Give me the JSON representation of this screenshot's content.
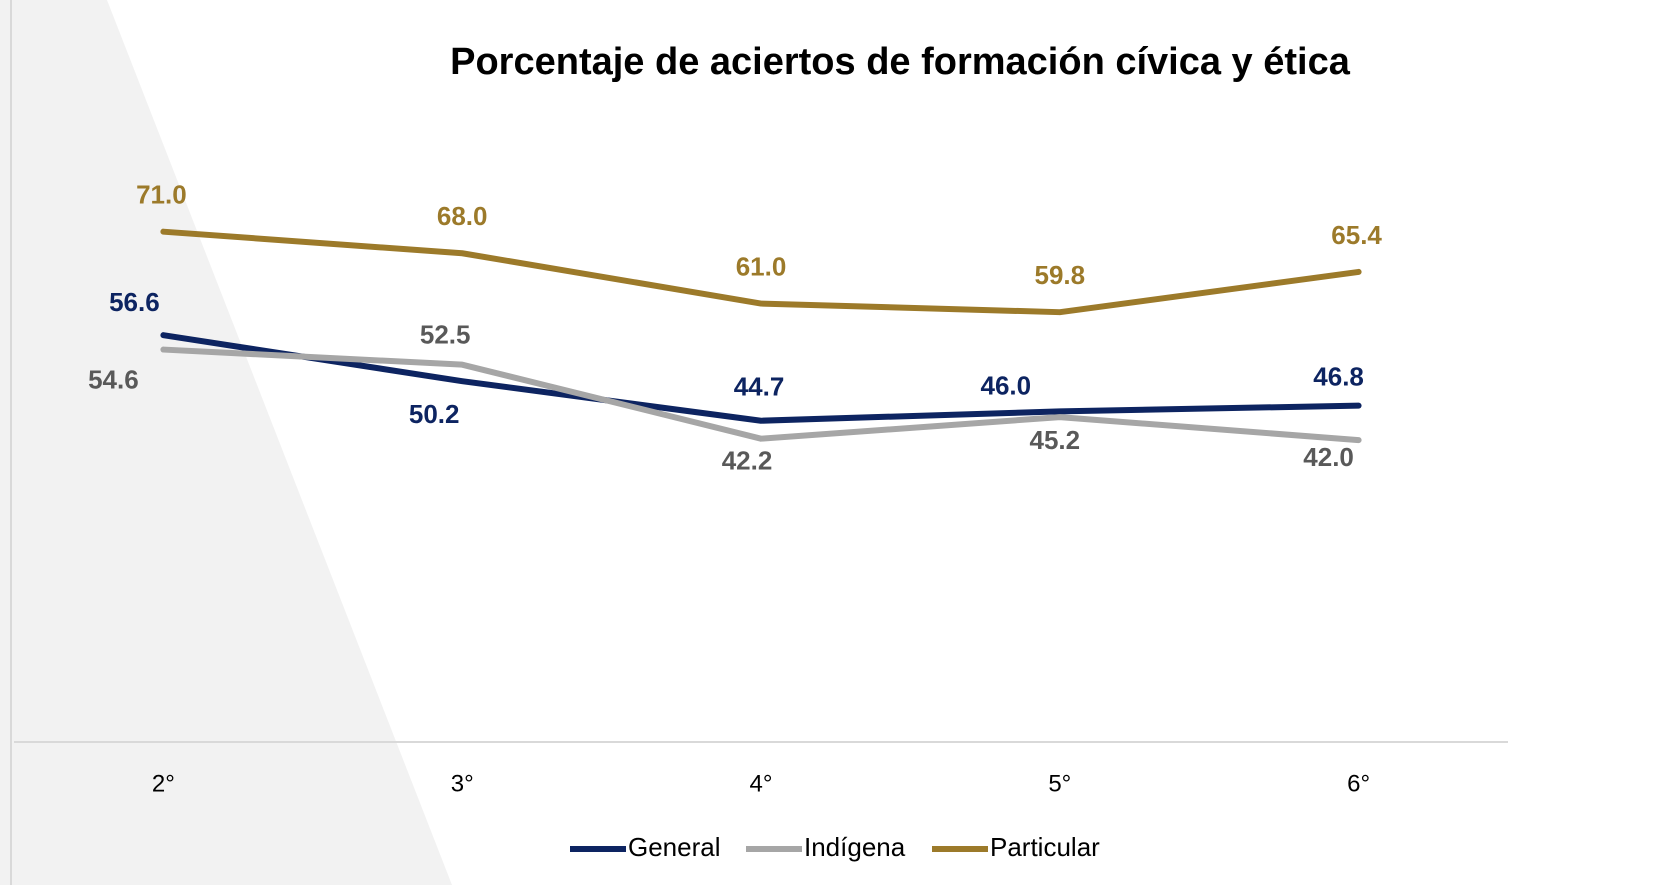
{
  "chart_data": {
    "type": "line",
    "title": "Porcentaje de aciertos de formación cívica y ética",
    "categories": [
      "2°",
      "3°",
      "4°",
      "5°",
      "6°"
    ],
    "series": [
      {
        "name": "General",
        "color": "#0d2461",
        "label_color": "#0d2461",
        "values": [
          56.6,
          50.2,
          44.7,
          46.0,
          46.8
        ],
        "value_labels": [
          "56.6",
          "50.2",
          "44.7",
          "46.0",
          "46.8"
        ]
      },
      {
        "name": "Indígena",
        "color": "#a6a6a6",
        "label_color": "#595959",
        "values": [
          54.6,
          52.5,
          42.2,
          45.2,
          42.0
        ],
        "value_labels": [
          "54.6",
          "52.5",
          "42.2",
          "45.2",
          "42.0"
        ]
      },
      {
        "name": "Particular",
        "color": "#9c7a2a",
        "label_color": "#9c7a2a",
        "values": [
          71.0,
          68.0,
          61.0,
          59.8,
          65.4
        ],
        "value_labels": [
          "71.0",
          "68.0",
          "61.0",
          "59.8",
          "65.4"
        ]
      }
    ],
    "ylim": [
      0,
      80
    ],
    "legend": "bottom"
  }
}
